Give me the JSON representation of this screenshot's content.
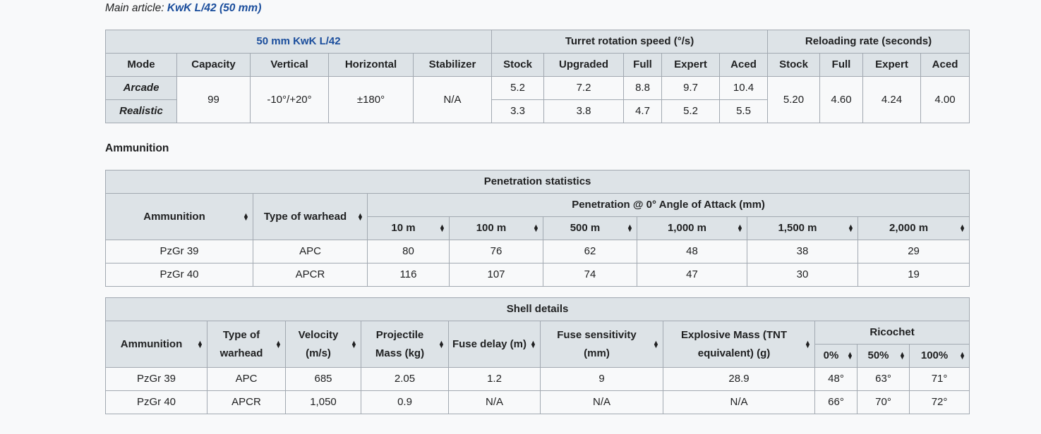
{
  "hatnote": {
    "prefix": "Main article: ",
    "link": "KwK L/42 (50 mm)"
  },
  "specs": {
    "gun_name": "50 mm KwK L/42",
    "turret_header": "Turret rotation speed (°/s)",
    "reload_header": "Reloading rate (seconds)",
    "columns": [
      "Mode",
      "Capacity",
      "Vertical",
      "Horizontal",
      "Stabilizer",
      "Stock",
      "Upgraded",
      "Full",
      "Expert",
      "Aced",
      "Stock",
      "Full",
      "Expert",
      "Aced"
    ],
    "capacity": "99",
    "vertical": "-10°/+20°",
    "horizontal": "±180°",
    "stabilizer": "N/A",
    "modes": [
      {
        "mode": "Arcade",
        "turret": [
          "5.2",
          "7.2",
          "8.8",
          "9.7",
          "10.4"
        ]
      },
      {
        "mode": "Realistic",
        "turret": [
          "3.3",
          "3.8",
          "4.7",
          "5.2",
          "5.5"
        ]
      }
    ],
    "reload": [
      "5.20",
      "4.60",
      "4.24",
      "4.00"
    ]
  },
  "ammunition_heading": "Ammunition",
  "penetration": {
    "title": "Penetration statistics",
    "ammo_col": "Ammunition",
    "warhead_col": "Type of warhead",
    "pen_group": "Penetration @ 0° Angle of Attack (mm)",
    "ranges": [
      "10 m",
      "100 m",
      "500 m",
      "1,000 m",
      "1,500 m",
      "2,000 m"
    ],
    "rows": [
      {
        "ammo": "PzGr 39",
        "warhead": "APC",
        "values": [
          "80",
          "76",
          "62",
          "48",
          "38",
          "29"
        ]
      },
      {
        "ammo": "PzGr 40",
        "warhead": "APCR",
        "values": [
          "116",
          "107",
          "74",
          "47",
          "30",
          "19"
        ]
      }
    ]
  },
  "shell": {
    "title": "Shell details",
    "cols": [
      "Ammunition",
      "Type of warhead",
      "Velocity (m/s)",
      "Projectile Mass (kg)",
      "Fuse delay (m)",
      "Fuse sensitivity (mm)",
      "Explosive Mass (TNT equivalent) (g)"
    ],
    "ricochet": "Ricochet",
    "ricochet_cols": [
      "0%",
      "50%",
      "100%"
    ],
    "rows": [
      {
        "cells": [
          "PzGr 39",
          "APC",
          "685",
          "2.05",
          "1.2",
          "9",
          "28.9"
        ],
        "ric": [
          "48°",
          "63°",
          "71°"
        ]
      },
      {
        "cells": [
          "PzGr 40",
          "APCR",
          "1,050",
          "0.9",
          "N/A",
          "N/A",
          "N/A"
        ],
        "ric": [
          "66°",
          "70°",
          "72°"
        ]
      }
    ]
  }
}
